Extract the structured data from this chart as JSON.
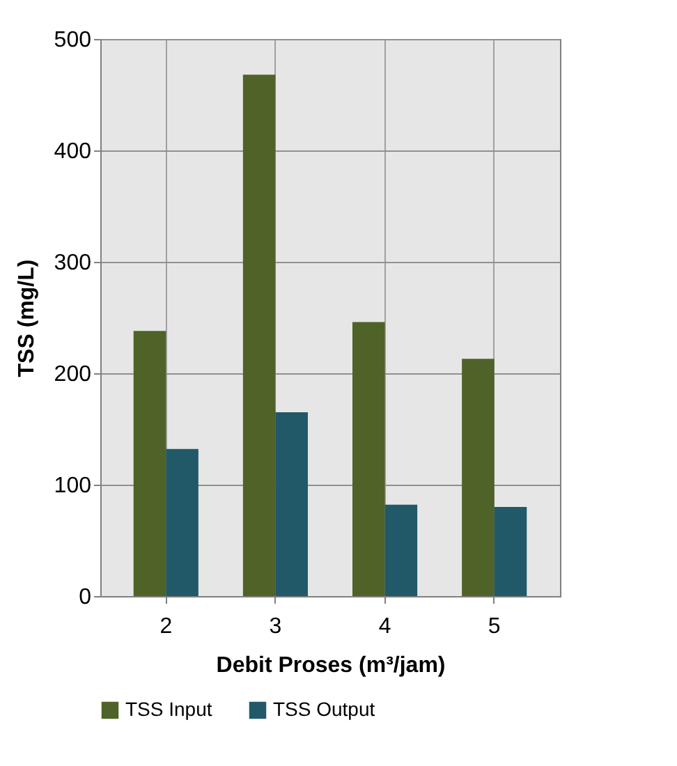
{
  "chart_data": {
    "type": "bar",
    "xlabel": "Debit Proses (m³/jam)",
    "ylabel": "TSS (mg/L)",
    "categories": [
      "2",
      "3",
      "4",
      "5"
    ],
    "series": [
      {
        "name": "TSS Input",
        "color": "#4f6228",
        "values": [
          238,
          468,
          246,
          213
        ]
      },
      {
        "name": "TSS Output",
        "color": "#215968",
        "values": [
          132,
          165,
          82,
          80
        ]
      }
    ],
    "ylim": [
      0,
      500
    ],
    "yticks": [
      0,
      100,
      200,
      300,
      400,
      500
    ],
    "grid": true,
    "legend": "bottom"
  }
}
